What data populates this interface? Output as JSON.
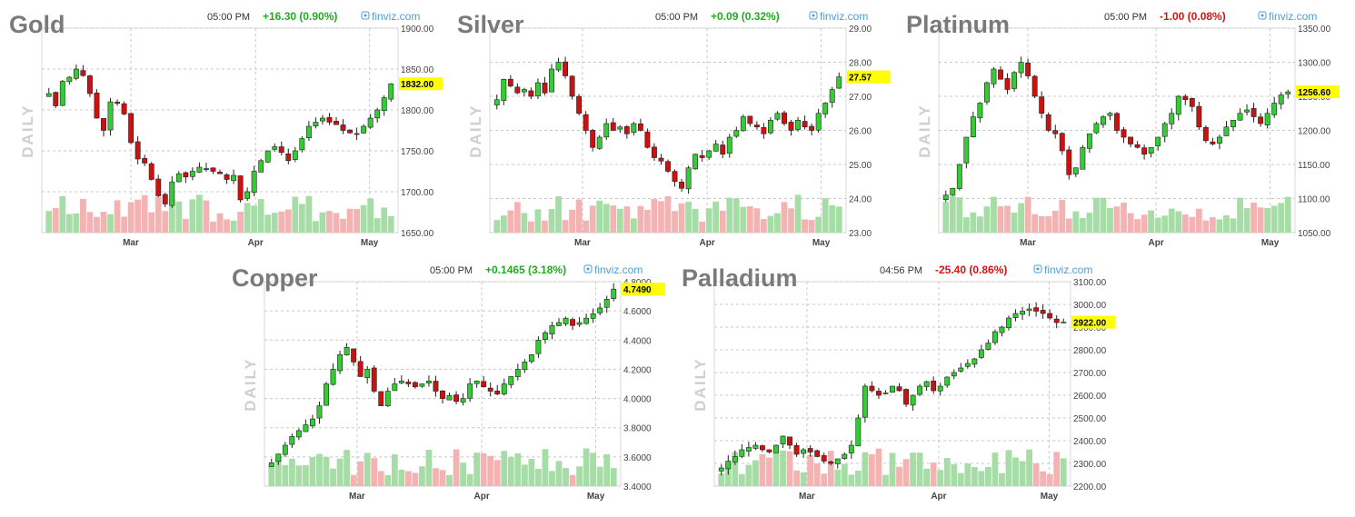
{
  "colors": {
    "up": "#33cc33",
    "down": "#cc1111",
    "vol_up": "#a6dca6",
    "vol_down": "#f4b3b3",
    "highlight": "#ffff00"
  },
  "chart_data": [
    {
      "type": "candlestick",
      "title": "Gold",
      "time": "05:00 PM",
      "change": "+16.30 (0.90%)",
      "direction": "up",
      "brand": "finviz.com",
      "period_label": "DAILY",
      "y_ticks": [
        "1900.00",
        "1850.00",
        "1800.00",
        "1750.00",
        "1700.00",
        "1650.00"
      ],
      "ylim": [
        1650,
        1900
      ],
      "last": "1832.00",
      "last_value": 1832,
      "months": [
        {
          "label": "Mar",
          "pos": 0.25
        },
        {
          "label": "Apr",
          "pos": 0.6
        },
        {
          "label": "May",
          "pos": 0.92
        }
      ],
      "path": [
        1820,
        1805,
        1835,
        1840,
        1850,
        1842,
        1820,
        1790,
        1775,
        1810,
        1808,
        1795,
        1760,
        1740,
        1735,
        1715,
        1695,
        1685,
        1712,
        1722,
        1718,
        1725,
        1730,
        1728,
        1725,
        1722,
        1715,
        1720,
        1690,
        1700,
        1725,
        1738,
        1750,
        1755,
        1748,
        1738,
        1750,
        1765,
        1780,
        1785,
        1790,
        1785,
        1782,
        1775,
        1772,
        1770,
        1780,
        1790,
        1800,
        1815,
        1832
      ]
    },
    {
      "type": "candlestick",
      "title": "Silver",
      "time": "05:00 PM",
      "change": "+0.09 (0.32%)",
      "direction": "up",
      "brand": "finviz.com",
      "period_label": "DAILY",
      "y_ticks": [
        "29.00",
        "28.00",
        "27.00",
        "26.00",
        "25.00",
        "24.00",
        "23.00"
      ],
      "ylim": [
        23,
        29
      ],
      "last": "27.57",
      "last_value": 27.57,
      "months": [
        {
          "label": "Mar",
          "pos": 0.26
        },
        {
          "label": "Apr",
          "pos": 0.61
        },
        {
          "label": "May",
          "pos": 0.93
        }
      ],
      "path": [
        26.9,
        27.5,
        27.3,
        27.1,
        27.2,
        27.0,
        27.4,
        27.1,
        27.8,
        28.0,
        27.6,
        27.0,
        26.5,
        26.0,
        25.5,
        25.8,
        26.2,
        26.0,
        26.1,
        25.9,
        26.2,
        26.0,
        25.5,
        25.2,
        25.1,
        24.8,
        24.5,
        24.3,
        24.9,
        25.3,
        25.2,
        25.4,
        25.6,
        25.3,
        25.8,
        26.0,
        26.4,
        26.2,
        26.1,
        25.9,
        26.3,
        26.5,
        26.2,
        26.0,
        26.3,
        26.1,
        26.0,
        26.5,
        26.8,
        27.2,
        27.57
      ]
    },
    {
      "type": "candlestick",
      "title": "Platinum",
      "time": "05:00 PM",
      "change": "-1.00 (0.08%)",
      "direction": "down",
      "brand": "finviz.com",
      "period_label": "DAILY",
      "y_ticks": [
        "1350.00",
        "1300.00",
        "1250.00",
        "1200.00",
        "1150.00",
        "1100.00",
        "1050.00"
      ],
      "ylim": [
        1050,
        1350
      ],
      "last": "1256.60",
      "last_value": 1256.6,
      "months": [
        {
          "label": "Mar",
          "pos": 0.25
        },
        {
          "label": "Apr",
          "pos": 0.61
        },
        {
          "label": "May",
          "pos": 0.93
        }
      ],
      "path": [
        1105,
        1115,
        1150,
        1190,
        1220,
        1240,
        1270,
        1290,
        1275,
        1260,
        1285,
        1300,
        1280,
        1250,
        1225,
        1200,
        1195,
        1170,
        1135,
        1145,
        1175,
        1195,
        1210,
        1220,
        1225,
        1200,
        1190,
        1180,
        1175,
        1165,
        1175,
        1190,
        1210,
        1225,
        1250,
        1245,
        1235,
        1205,
        1185,
        1180,
        1190,
        1205,
        1215,
        1225,
        1230,
        1220,
        1210,
        1225,
        1240,
        1252,
        1256.6
      ]
    },
    {
      "type": "candlestick",
      "title": "Copper",
      "time": "05:00 PM",
      "change": "+0.1465 (3.18%)",
      "direction": "up",
      "brand": "finviz.com",
      "period_label": "DAILY",
      "y_ticks": [
        "4.8000",
        "4.6000",
        "4.4000",
        "4.2000",
        "4.0000",
        "3.8000",
        "3.6000",
        "3.4000"
      ],
      "ylim": [
        3.4,
        4.8
      ],
      "last": "4.7490",
      "last_value": 4.749,
      "months": [
        {
          "label": "Mar",
          "pos": 0.26
        },
        {
          "label": "Apr",
          "pos": 0.61
        },
        {
          "label": "May",
          "pos": 0.93
        }
      ],
      "path": [
        3.56,
        3.62,
        3.68,
        3.74,
        3.78,
        3.82,
        3.86,
        3.95,
        4.1,
        4.2,
        4.3,
        4.35,
        4.25,
        4.15,
        4.2,
        4.05,
        3.95,
        4.05,
        4.1,
        4.12,
        4.1,
        4.08,
        4.1,
        4.12,
        4.05,
        4.0,
        4.02,
        3.98,
        4.0,
        4.1,
        4.12,
        4.08,
        4.05,
        4.03,
        4.1,
        4.15,
        4.2,
        4.25,
        4.3,
        4.4,
        4.45,
        4.5,
        4.52,
        4.55,
        4.5,
        4.52,
        4.55,
        4.58,
        4.62,
        4.68,
        4.749
      ]
    },
    {
      "type": "candlestick",
      "title": "Palladium",
      "time": "04:56 PM",
      "change": "-25.40 (0.86%)",
      "direction": "down",
      "brand": "finviz.com",
      "period_label": "DAILY",
      "y_ticks": [
        "3100.00",
        "3000.00",
        "2900.00",
        "2800.00",
        "2700.00",
        "2600.00",
        "2500.00",
        "2400.00",
        "2300.00",
        "2200.00"
      ],
      "ylim": [
        2200,
        3100
      ],
      "last": "2922.00",
      "last_value": 2922,
      "months": [
        {
          "label": "Mar",
          "pos": 0.26
        },
        {
          "label": "Apr",
          "pos": 0.63
        },
        {
          "label": "May",
          "pos": 0.94
        }
      ],
      "path": [
        2280,
        2310,
        2330,
        2360,
        2370,
        2380,
        2360,
        2350,
        2380,
        2420,
        2380,
        2340,
        2360,
        2350,
        2330,
        2310,
        2300,
        2320,
        2340,
        2380,
        2500,
        2640,
        2620,
        2600,
        2610,
        2640,
        2620,
        2560,
        2600,
        2640,
        2660,
        2620,
        2640,
        2680,
        2700,
        2720,
        2740,
        2760,
        2800,
        2830,
        2880,
        2900,
        2940,
        2960,
        2970,
        2980,
        2970,
        2960,
        2940,
        2920,
        2922
      ]
    }
  ]
}
